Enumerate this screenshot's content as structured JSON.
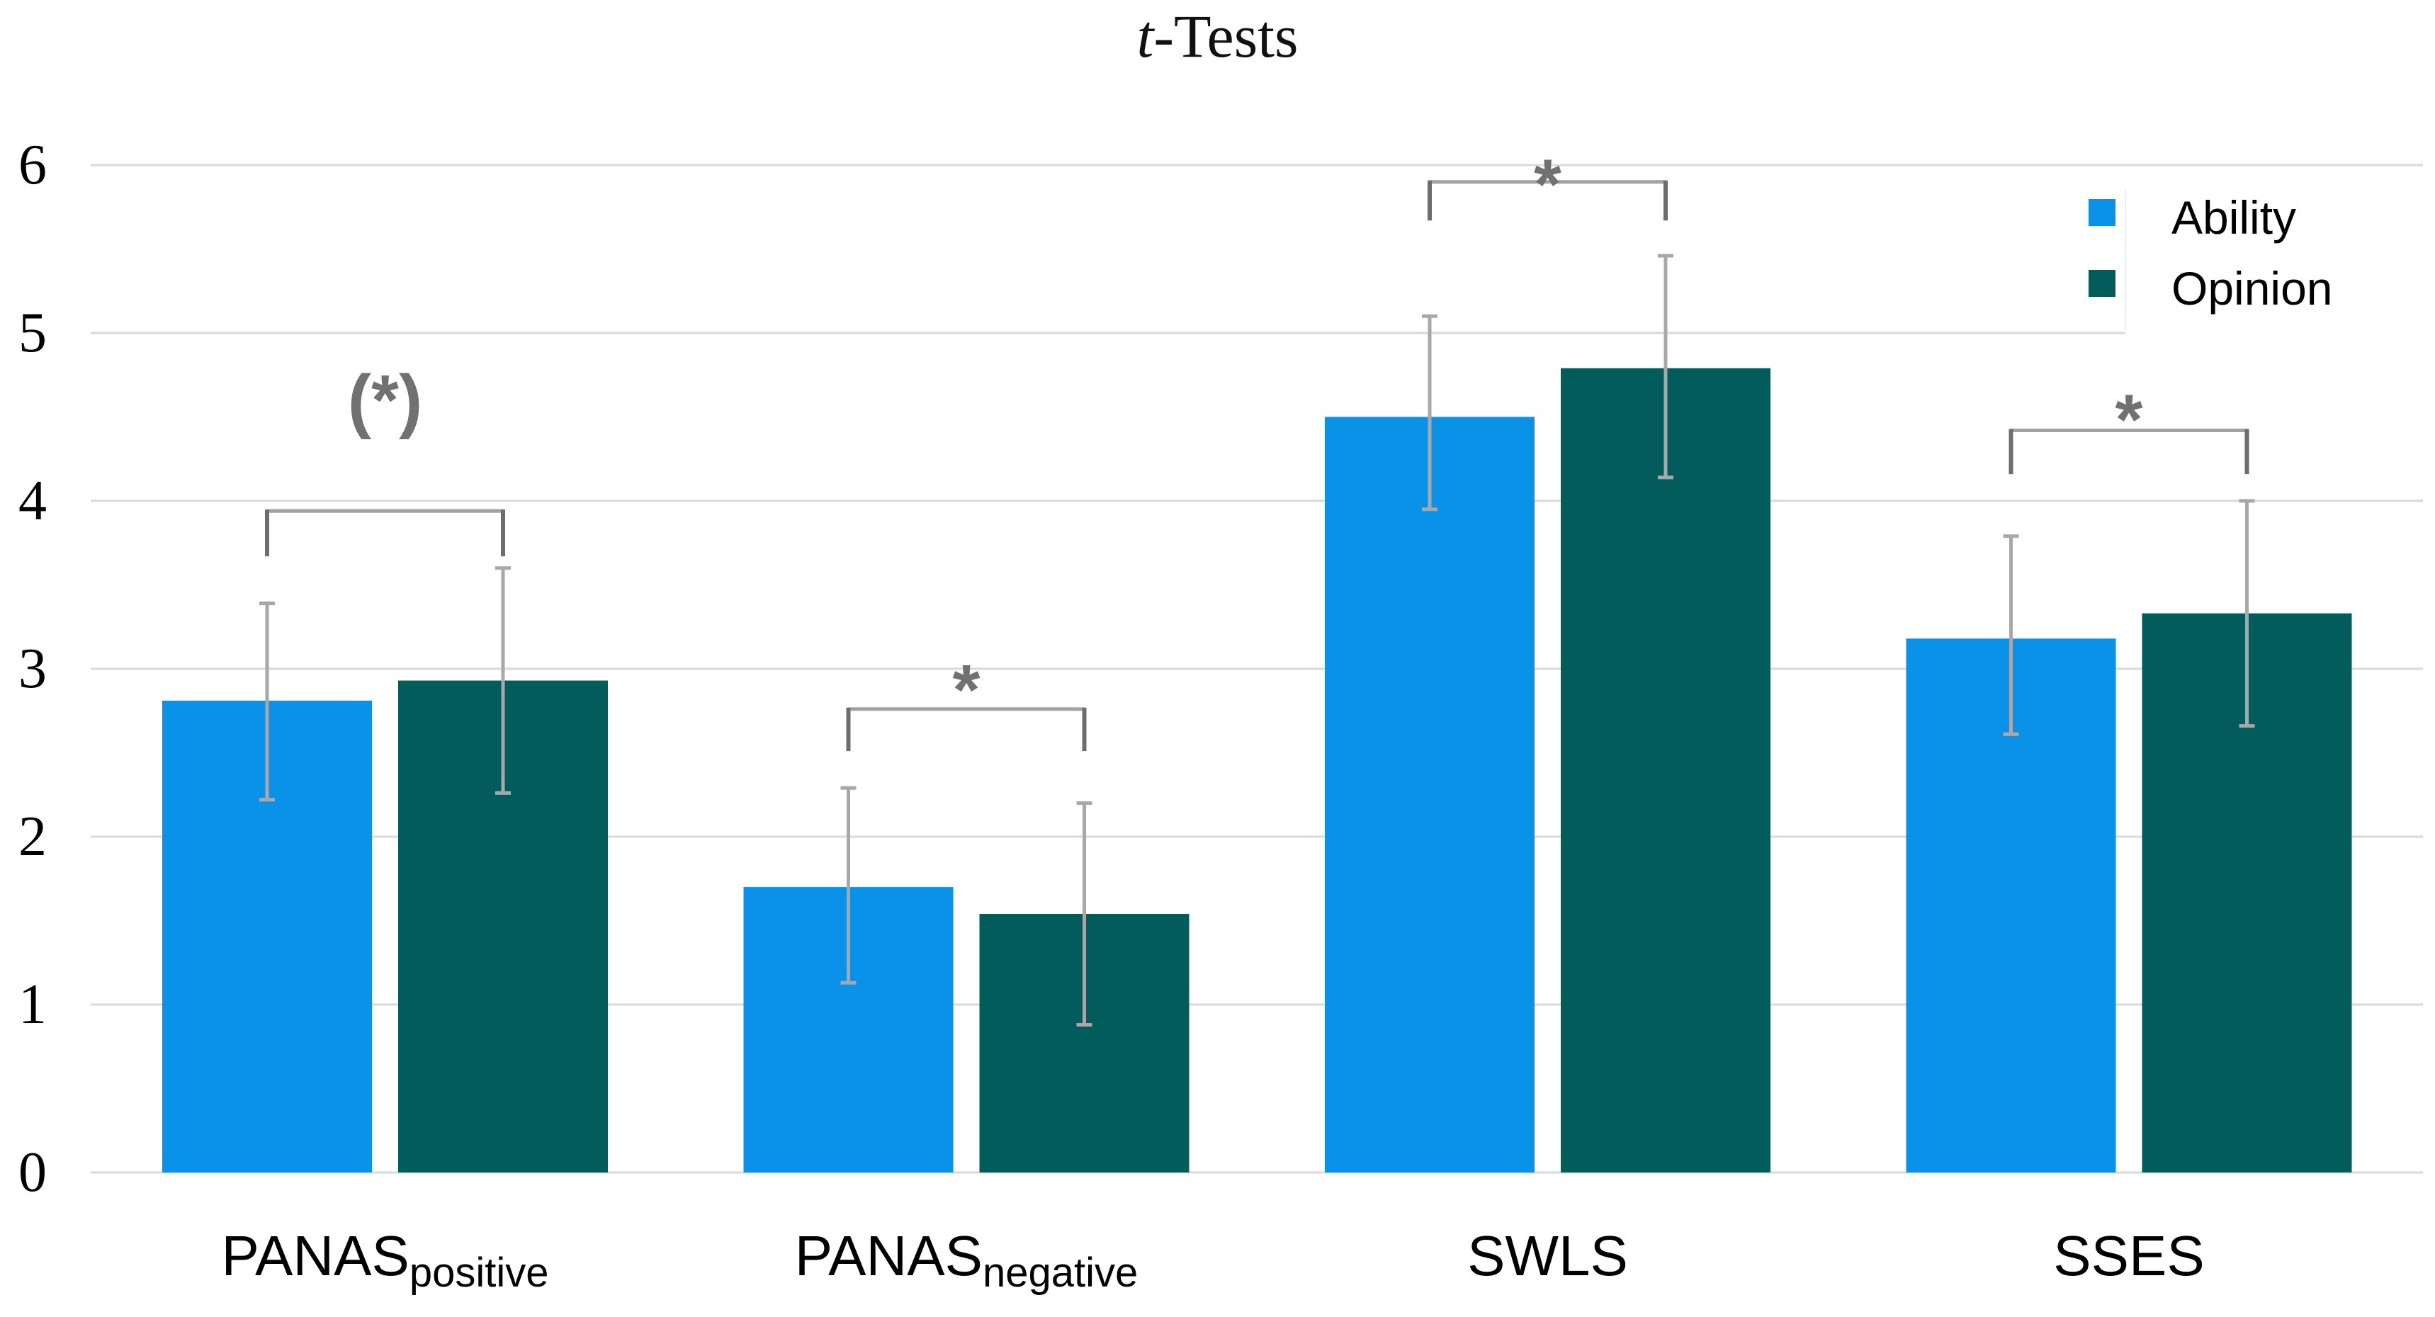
{
  "chart_data": {
    "type": "bar",
    "title": "t-Tests",
    "title_italic": "t",
    "title_rest": "-Tests",
    "xlabel": "",
    "ylabel": "",
    "ylim": [
      0,
      6
    ],
    "y_ticks": [
      0,
      1,
      2,
      3,
      4,
      5,
      6
    ],
    "grid": true,
    "legend_position": "top-right",
    "categories": [
      {
        "label": "PANAS",
        "subscript": "positive"
      },
      {
        "label": "PANAS",
        "subscript": "negative"
      },
      {
        "label": "SWLS",
        "subscript": ""
      },
      {
        "label": "SSES",
        "subscript": ""
      }
    ],
    "series": [
      {
        "name": "Ability",
        "color": "#0a92e8",
        "values": [
          2.81,
          1.7,
          4.5,
          3.18
        ],
        "error_low": [
          2.22,
          1.13,
          3.95,
          2.61
        ],
        "error_high": [
          3.39,
          2.29,
          5.1,
          3.79
        ]
      },
      {
        "name": "Opinion",
        "color": "#035c5c",
        "values": [
          2.93,
          1.54,
          4.79,
          3.33
        ],
        "error_low": [
          2.26,
          0.88,
          4.14,
          2.66
        ],
        "error_high": [
          3.6,
          2.2,
          5.46,
          4.0
        ]
      }
    ],
    "significance": [
      {
        "label": "(*)",
        "bracket_top": 3.94,
        "bracket_leg_bottom": 3.67,
        "label_value": 4.6
      },
      {
        "label": "*",
        "bracket_top": 2.76,
        "bracket_leg_bottom": 2.51,
        "label_value": 3.0
      },
      {
        "label": "*",
        "bracket_top": 5.9,
        "bracket_leg_bottom": 5.67,
        "label_value": 6.01
      },
      {
        "label": "*",
        "bracket_top": 4.42,
        "bracket_leg_bottom": 4.16,
        "label_value": 4.61
      }
    ],
    "colors": {
      "grid": "#d9d9d9",
      "error_bar": "#a9a7aa",
      "bracket_top": "#a3a0a3",
      "bracket_leg": "#6f6b6f",
      "sig_label": "#717171",
      "tick_label": "#000000",
      "axis_label": "#000000",
      "legend_text": "#000000",
      "background": "#ffffff"
    }
  }
}
